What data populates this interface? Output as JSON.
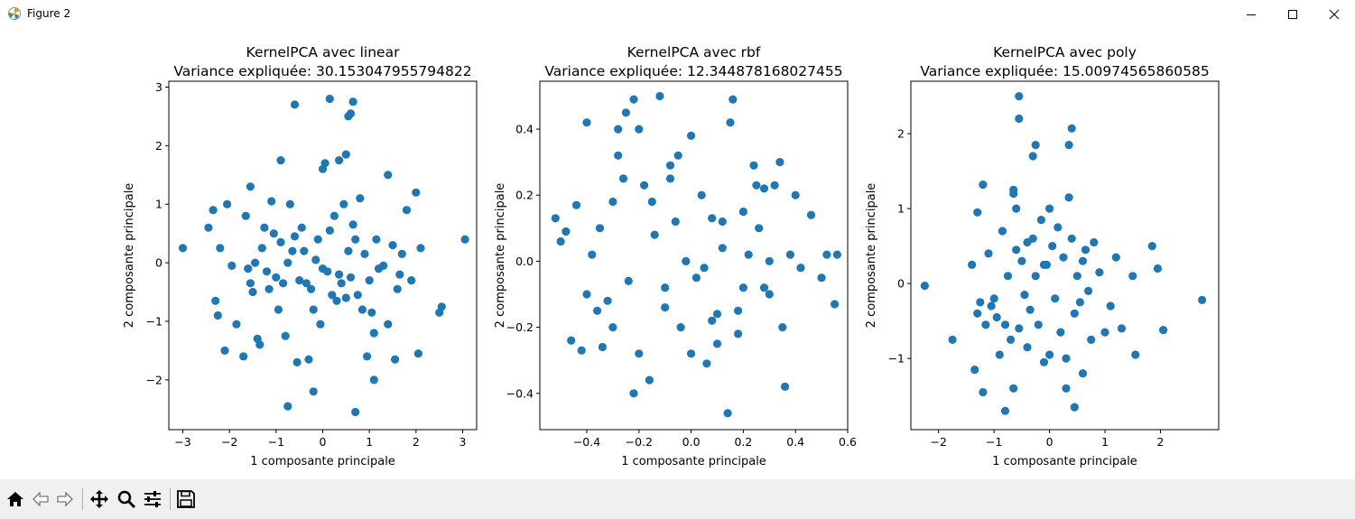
{
  "window": {
    "title": "Figure 2"
  },
  "toolbar": {
    "buttons": [
      {
        "name": "home-button",
        "icon": "home-icon"
      },
      {
        "name": "back-button",
        "icon": "arrow-left-icon"
      },
      {
        "name": "forward-button",
        "icon": "arrow-right-icon"
      },
      {
        "name": "pan-button",
        "icon": "move-icon"
      },
      {
        "name": "zoom-button",
        "icon": "magnifier-icon"
      },
      {
        "name": "configure-subplots-button",
        "icon": "sliders-icon"
      },
      {
        "name": "save-button",
        "icon": "floppy-disk-icon"
      }
    ]
  },
  "colors": {
    "marker": "#1f77b4",
    "axes": "#000000",
    "toolbar": "#f0f0f0"
  },
  "chart_data": [
    {
      "type": "scatter",
      "title": "KernelPCA avec linear",
      "subtitle": "Variance expliquée: 30.153047955794822",
      "xlabel": "1 composante principale",
      "ylabel": "2 composante principale",
      "xlim": [
        -3.3,
        3.3
      ],
      "ylim": [
        -2.85,
        3.1
      ],
      "xticks": [
        -3,
        -2,
        -1,
        0,
        1,
        2,
        3
      ],
      "yticks": [
        -2,
        -1,
        0,
        1,
        2,
        3
      ],
      "grid": false,
      "x": [
        -3.0,
        -2.45,
        -2.35,
        -2.3,
        -2.25,
        -2.2,
        -2.1,
        -2.05,
        -1.95,
        -1.85,
        -1.7,
        -1.65,
        -1.6,
        -1.55,
        -1.5,
        -1.45,
        -1.4,
        -1.35,
        -1.3,
        -1.25,
        -1.2,
        -1.15,
        -1.1,
        -1.05,
        -1.0,
        -0.95,
        -0.9,
        -0.85,
        -0.8,
        -0.75,
        -0.7,
        -0.65,
        -0.6,
        -0.55,
        -0.5,
        -0.45,
        -0.4,
        -0.35,
        -0.3,
        -0.25,
        -0.2,
        -0.15,
        -0.1,
        -0.05,
        0.0,
        0.05,
        0.1,
        0.15,
        0.2,
        0.25,
        0.3,
        0.35,
        0.4,
        0.45,
        0.5,
        0.55,
        0.6,
        0.65,
        0.7,
        0.75,
        0.8,
        0.85,
        0.9,
        0.95,
        1.0,
        1.05,
        1.1,
        1.15,
        1.2,
        1.3,
        1.4,
        1.5,
        1.55,
        1.6,
        1.65,
        1.7,
        1.8,
        1.9,
        2.0,
        2.05,
        2.1,
        2.5,
        2.55,
        3.05,
        -0.6,
        0.15,
        0.55,
        0.65,
        0.6,
        -0.75,
        0.7,
        1.1,
        -0.2,
        0.35,
        0.0,
        0.5,
        -0.9,
        1.4,
        -1.55
      ],
      "y": [
        0.25,
        0.6,
        0.9,
        -0.65,
        -0.9,
        0.25,
        -1.5,
        1.0,
        -0.05,
        -1.05,
        -1.6,
        0.8,
        -0.1,
        -0.35,
        -0.5,
        0.0,
        -1.3,
        -1.4,
        0.25,
        0.6,
        -0.15,
        -0.45,
        1.05,
        0.5,
        -0.25,
        -0.8,
        0.35,
        -0.35,
        -1.25,
        0.0,
        1.0,
        0.2,
        0.45,
        -1.7,
        -0.3,
        0.6,
        0.2,
        -0.35,
        -1.65,
        -0.45,
        -0.8,
        0.05,
        0.4,
        -1.05,
        -0.1,
        1.7,
        -0.15,
        0.55,
        -0.55,
        0.8,
        -0.65,
        -0.2,
        -0.35,
        1.0,
        -0.6,
        0.2,
        -0.25,
        0.65,
        0.4,
        -0.55,
        1.1,
        -0.8,
        0.15,
        -1.6,
        -0.3,
        -0.85,
        -1.2,
        0.4,
        -0.1,
        -0.05,
        -1.05,
        0.3,
        -1.65,
        -0.45,
        -0.2,
        0.15,
        0.9,
        -0.3,
        1.2,
        -1.55,
        0.25,
        -0.85,
        -0.75,
        0.4,
        2.7,
        2.8,
        2.5,
        2.75,
        2.55,
        -2.45,
        -2.55,
        -2.0,
        -2.2,
        1.75,
        1.6,
        1.85,
        1.75,
        1.5,
        1.3
      ]
    },
    {
      "type": "scatter",
      "title": "KernelPCA avec rbf",
      "subtitle": "Variance expliquée: 12.344878168027455",
      "xlabel": "1 composante principale",
      "ylabel": "2 composante principale",
      "xlim": [
        -0.58,
        0.6
      ],
      "ylim": [
        -0.51,
        0.545
      ],
      "xticks": [
        -0.4,
        -0.2,
        0.0,
        0.2,
        0.4,
        0.6
      ],
      "yticks": [
        -0.4,
        -0.2,
        0.0,
        0.2,
        0.4
      ],
      "grid": false,
      "x": [
        -0.52,
        -0.5,
        -0.48,
        -0.46,
        -0.44,
        -0.42,
        -0.4,
        -0.38,
        -0.36,
        -0.34,
        -0.32,
        -0.3,
        -0.28,
        -0.26,
        -0.24,
        -0.22,
        -0.2,
        -0.18,
        -0.16,
        -0.14,
        -0.12,
        -0.1,
        -0.08,
        -0.06,
        -0.04,
        -0.02,
        0.0,
        0.02,
        0.04,
        0.06,
        0.08,
        0.1,
        0.12,
        0.14,
        0.16,
        0.18,
        0.2,
        0.22,
        0.24,
        0.26,
        0.28,
        0.3,
        0.32,
        0.34,
        0.36,
        0.38,
        0.4,
        0.42,
        0.46,
        0.5,
        0.52,
        0.55,
        0.56,
        -0.25,
        -0.2,
        0.15,
        -0.1,
        0.3,
        -0.3,
        0.05,
        -0.15,
        0.1,
        -0.05,
        0.2,
        0.25,
        -0.35,
        0.35,
        -0.22,
        0.0,
        0.12,
        -0.4,
        0.18,
        -0.08,
        0.08,
        -0.28,
        0.28
      ],
      "y": [
        0.13,
        0.06,
        0.09,
        -0.24,
        0.17,
        -0.27,
        -0.1,
        0.02,
        -0.15,
        -0.26,
        -0.12,
        0.18,
        0.32,
        0.25,
        -0.06,
        0.49,
        -0.28,
        0.23,
        -0.36,
        0.08,
        0.5,
        -0.14,
        0.29,
        0.12,
        -0.2,
        0.0,
        0.38,
        -0.05,
        0.2,
        -0.31,
        0.13,
        -0.16,
        0.04,
        -0.46,
        0.49,
        -0.22,
        0.15,
        0.02,
        0.29,
        0.1,
        0.22,
        -0.1,
        0.23,
        0.3,
        -0.38,
        0.02,
        0.2,
        -0.02,
        0.14,
        -0.05,
        0.02,
        -0.13,
        0.02,
        0.45,
        0.4,
        0.42,
        -0.08,
        0.0,
        -0.2,
        -0.02,
        0.18,
        -0.25,
        0.32,
        -0.08,
        0.23,
        0.1,
        -0.2,
        -0.4,
        -0.28,
        0.12,
        0.42,
        -0.15,
        0.25,
        -0.18,
        0.4,
        -0.08
      ]
    },
    {
      "type": "scatter",
      "title": "KernelPCA avec poly",
      "subtitle": "Variance expliquée: 15.00974565860585",
      "xlabel": "1 composante principale",
      "ylabel": "2 composante principale",
      "xlim": [
        -2.5,
        3.05
      ],
      "ylim": [
        -1.95,
        2.7
      ],
      "xticks": [
        -2,
        -1,
        0,
        1,
        2
      ],
      "yticks": [
        -1,
        0,
        1,
        2
      ],
      "grid": false,
      "x": [
        -2.25,
        -1.75,
        -1.4,
        -1.35,
        -1.3,
        -1.25,
        -1.2,
        -1.15,
        -1.1,
        -1.05,
        -1.0,
        -0.95,
        -0.9,
        -0.85,
        -0.8,
        -0.75,
        -0.7,
        -0.65,
        -0.6,
        -0.55,
        -0.5,
        -0.45,
        -0.4,
        -0.35,
        -0.3,
        -0.25,
        -0.2,
        -0.15,
        -0.1,
        -0.05,
        0.0,
        0.05,
        0.1,
        0.15,
        0.2,
        0.25,
        0.3,
        0.35,
        0.4,
        0.45,
        0.5,
        0.55,
        0.6,
        0.65,
        0.7,
        0.75,
        0.8,
        0.9,
        1.0,
        1.1,
        1.2,
        1.3,
        1.5,
        1.55,
        1.85,
        1.95,
        2.05,
        2.75,
        -0.55,
        -0.55,
        -0.3,
        -0.25,
        0.35,
        0.4,
        -1.2,
        -0.65,
        -0.65,
        0.0,
        0.45,
        -0.6,
        -1.3,
        -0.1,
        0.3,
        -0.8,
        0.6,
        -0.4
      ],
      "y": [
        -0.03,
        -0.75,
        0.25,
        -1.15,
        -0.4,
        -0.25,
        -1.45,
        -0.55,
        0.4,
        -0.3,
        -0.2,
        -0.45,
        -0.95,
        0.7,
        -0.55,
        0.1,
        -0.75,
        -1.4,
        0.45,
        -0.6,
        0.3,
        -0.15,
        0.55,
        -0.35,
        0.6,
        0.1,
        -0.55,
        0.85,
        -1.05,
        0.25,
        -0.95,
        0.5,
        -0.2,
        0.75,
        -0.65,
        0.35,
        -1.0,
        1.15,
        0.6,
        -0.4,
        0.1,
        -0.25,
        -1.2,
        0.45,
        -0.1,
        -0.75,
        0.55,
        0.15,
        -0.65,
        -0.3,
        0.35,
        -0.6,
        0.1,
        -0.95,
        0.5,
        0.2,
        -0.62,
        -0.22,
        2.5,
        2.2,
        1.7,
        1.85,
        1.85,
        2.07,
        1.32,
        1.2,
        1.25,
        1.0,
        -1.65,
        1.0,
        0.95,
        0.25,
        -1.4,
        -1.7,
        0.3,
        -0.85
      ]
    }
  ]
}
